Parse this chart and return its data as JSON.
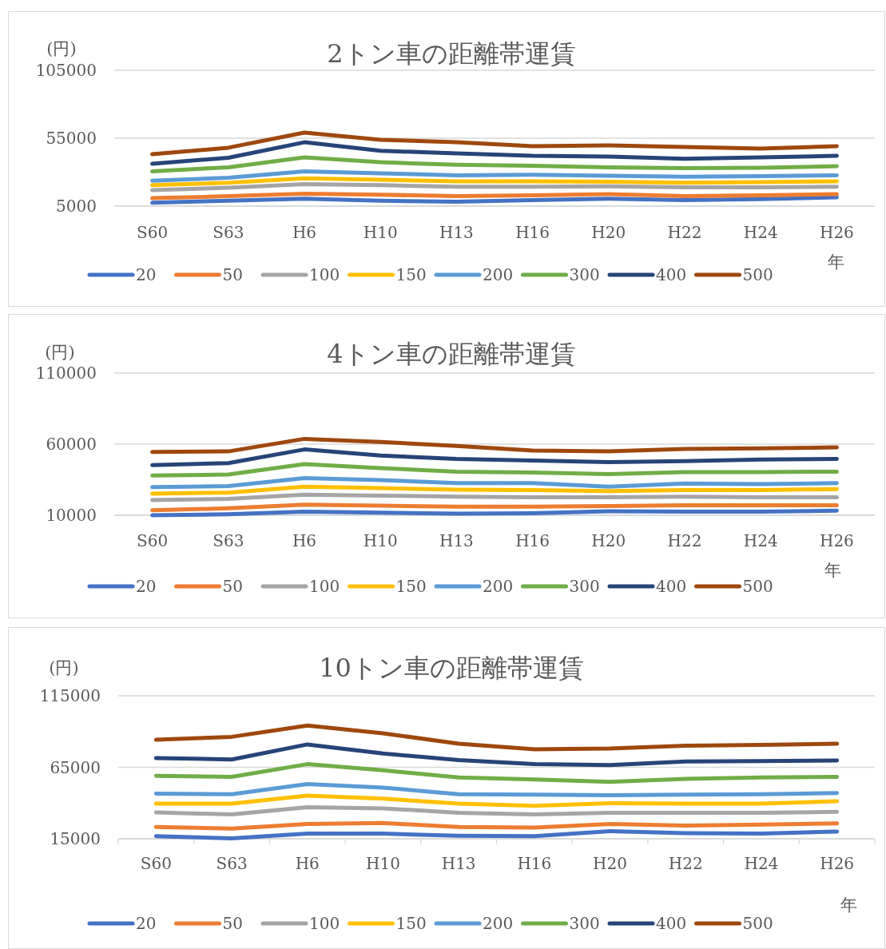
{
  "chart_data": [
    {
      "type": "line",
      "title": "2トン車の距離帯運賃",
      "ylabel": "(円)",
      "xlabel": "年",
      "categories": [
        "S60",
        "S63",
        "H6",
        "H10",
        "H13",
        "H16",
        "H20",
        "H22",
        "H24",
        "H26"
      ],
      "ylim": [
        5000,
        105000
      ],
      "yticks": [
        5000,
        55000,
        105000
      ],
      "grid": "y",
      "legend": "bottom",
      "series": [
        {
          "name": "20",
          "color": "#4472c4",
          "values": [
            7500,
            9000,
            10400,
            9000,
            8200,
            9400,
            10400,
            9400,
            10100,
            11500
          ]
        },
        {
          "name": "50",
          "color": "#ed7d31",
          "values": [
            10800,
            12300,
            14100,
            13400,
            12300,
            13000,
            13800,
            12300,
            13000,
            13800
          ]
        },
        {
          "name": "100",
          "color": "#a5a5a5",
          "values": [
            16700,
            18500,
            21100,
            20400,
            19300,
            19300,
            19600,
            18900,
            18900,
            19300
          ]
        },
        {
          "name": "150",
          "color": "#ffc000",
          "values": [
            20400,
            22200,
            25500,
            24400,
            23300,
            23300,
            22900,
            22200,
            22600,
            23300
          ]
        },
        {
          "name": "200",
          "color": "#5b9bd5",
          "values": [
            23700,
            25900,
            30600,
            29200,
            27700,
            28100,
            27400,
            26600,
            27000,
            27700
          ]
        },
        {
          "name": "300",
          "color": "#70ad47",
          "values": [
            30600,
            33600,
            40900,
            37300,
            35400,
            34700,
            33600,
            32900,
            33200,
            34400
          ]
        },
        {
          "name": "400",
          "color": "#264478",
          "values": [
            36200,
            40600,
            52000,
            45700,
            43800,
            42000,
            41500,
            39800,
            40900,
            42000
          ]
        },
        {
          "name": "500",
          "color": "#9e480e",
          "values": [
            43200,
            48000,
            59100,
            53800,
            52000,
            49100,
            49700,
            48500,
            47400,
            49100
          ]
        }
      ]
    },
    {
      "type": "line",
      "title": "4トン車の距離帯運賃",
      "ylabel": "(円)",
      "xlabel": "年",
      "categories": [
        "S60",
        "S63",
        "H6",
        "H10",
        "H13",
        "H16",
        "H20",
        "H22",
        "H24",
        "H26"
      ],
      "ylim": [
        10000,
        110000
      ],
      "yticks": [
        10000,
        60000,
        110000
      ],
      "grid": "y",
      "legend": "bottom",
      "series": [
        {
          "name": "20",
          "color": "#4472c4",
          "values": [
            10000,
            10700,
            12500,
            11800,
            11100,
            11400,
            12800,
            12500,
            12500,
            13200
          ]
        },
        {
          "name": "50",
          "color": "#ed7d31",
          "values": [
            13500,
            14900,
            17400,
            16700,
            16000,
            16000,
            16400,
            17100,
            17100,
            17100
          ]
        },
        {
          "name": "100",
          "color": "#a5a5a5",
          "values": [
            20600,
            21600,
            24500,
            23800,
            23100,
            22700,
            22700,
            23100,
            22700,
            22700
          ]
        },
        {
          "name": "150",
          "color": "#ffc000",
          "values": [
            25200,
            25900,
            30100,
            29100,
            28000,
            27700,
            27000,
            27700,
            27700,
            28400
          ]
        },
        {
          "name": "200",
          "color": "#5b9bd5",
          "values": [
            29800,
            30500,
            36100,
            34700,
            32600,
            32600,
            30100,
            32300,
            31900,
            32600
          ]
        },
        {
          "name": "300",
          "color": "#70ad47",
          "values": [
            37900,
            38600,
            46000,
            43200,
            40700,
            40000,
            39000,
            40400,
            40400,
            40700
          ]
        },
        {
          "name": "400",
          "color": "#264478",
          "values": [
            45300,
            46700,
            56300,
            52000,
            49600,
            48500,
            47400,
            48100,
            49200,
            49600
          ]
        },
        {
          "name": "500",
          "color": "#9e480e",
          "values": [
            54500,
            54900,
            63700,
            61600,
            58700,
            55500,
            54900,
            56600,
            57000,
            57700
          ]
        }
      ]
    },
    {
      "type": "line",
      "title": "10トン車の距離帯運賃",
      "ylabel": "(円)",
      "xlabel": "年",
      "categories": [
        "S60",
        "S63",
        "H6",
        "H10",
        "H13",
        "H16",
        "H20",
        "H22",
        "H24",
        "H26"
      ],
      "ylim": [
        15000,
        115000
      ],
      "yticks": [
        15000,
        65000,
        115000
      ],
      "grid": "y",
      "legend": "bottom",
      "series": [
        {
          "name": "20",
          "color": "#4472c4",
          "values": [
            16800,
            15300,
            18600,
            18600,
            17100,
            16800,
            20300,
            18900,
            18600,
            20000
          ]
        },
        {
          "name": "50",
          "color": "#ed7d31",
          "values": [
            23200,
            22100,
            25300,
            26000,
            23200,
            22800,
            25300,
            24200,
            24900,
            25700
          ]
        },
        {
          "name": "100",
          "color": "#a5a5a5",
          "values": [
            33500,
            32000,
            37000,
            36300,
            33100,
            32000,
            33100,
            33100,
            33100,
            33800
          ]
        },
        {
          "name": "150",
          "color": "#ffc000",
          "values": [
            39500,
            39500,
            45200,
            43100,
            39500,
            38100,
            39900,
            39500,
            39500,
            41300
          ]
        },
        {
          "name": "200",
          "color": "#5b9bd5",
          "values": [
            46600,
            46200,
            53300,
            50800,
            46200,
            45900,
            45500,
            45900,
            46200,
            47000
          ]
        },
        {
          "name": "300",
          "color": "#70ad47",
          "values": [
            59000,
            58300,
            67200,
            62900,
            57900,
            56500,
            54800,
            56900,
            57900,
            58300
          ]
        },
        {
          "name": "400",
          "color": "#264478",
          "values": [
            71500,
            70400,
            81000,
            74600,
            70000,
            67200,
            66500,
            69000,
            69300,
            69700
          ]
        },
        {
          "name": "500",
          "color": "#9e480e",
          "values": [
            84200,
            86300,
            94200,
            88800,
            81400,
            77500,
            78200,
            80000,
            80700,
            81400
          ]
        }
      ]
    }
  ]
}
